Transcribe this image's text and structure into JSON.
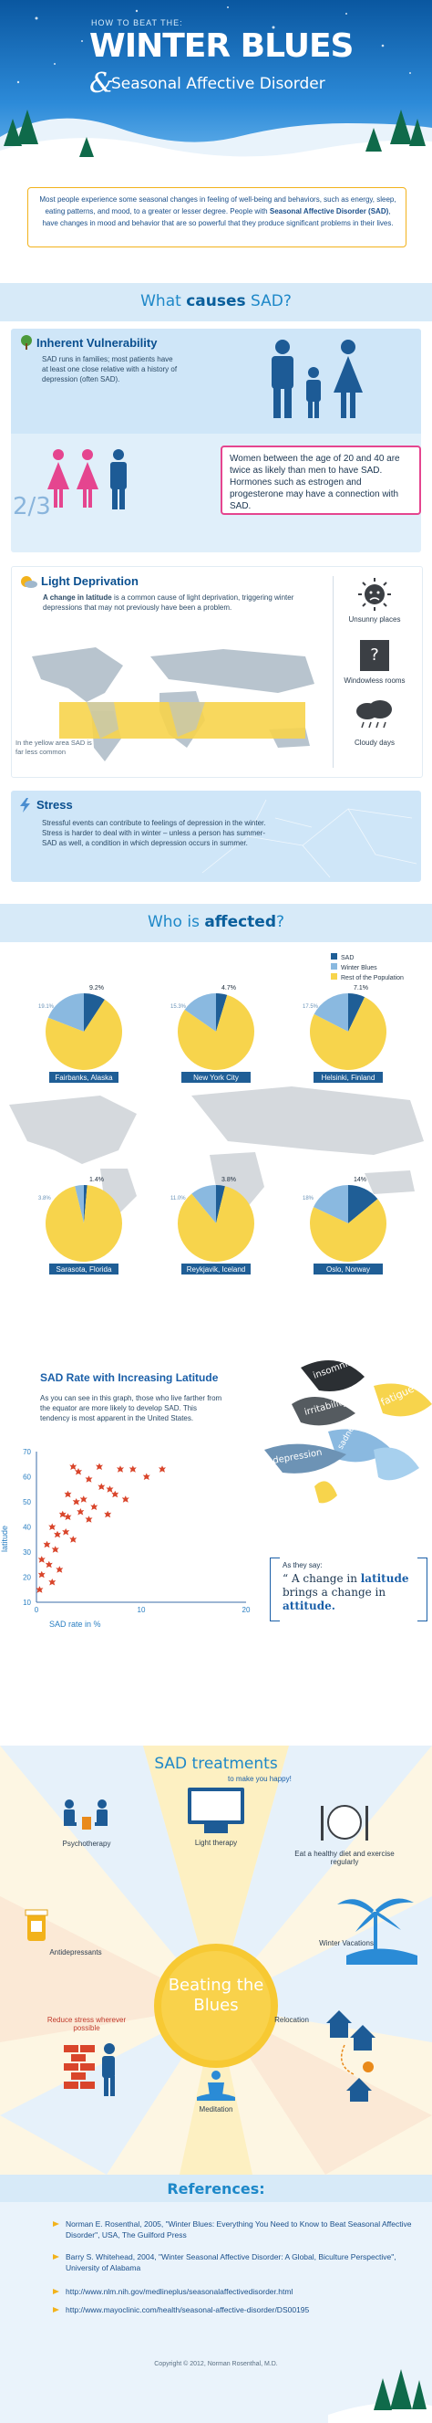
{
  "header": {
    "pretitle": "HOW TO BEAT THE:",
    "title": "WINTER BLUES",
    "subtitle": "Seasonal Affective Disorder",
    "amp": "&"
  },
  "intro": {
    "text1": "Most people experience some seasonal changes in feeling of well-being and behaviors, such as energy, sleep, eating patterns, and mood, to a greater or lesser degree. People with ",
    "bold": "Seasonal Affective Disorder (SAD)",
    "text2": ", have changes in mood and behavior that are so powerful that they produce significant problems in their lives."
  },
  "causes": {
    "title_pre": "What",
    "title_bold": "causes",
    "title_post": "SAD?",
    "inherent": {
      "title": "Inherent Vulnerability",
      "text": "SAD runs in families; most patients have at least one close relative with a history of depression (often SAD).",
      "fraction": "2/3",
      "women_text": "Women between the age of 20 and 40 are twice as likely than men to have SAD. Hormones such as estrogen and progesterone may have a connection with SAD."
    },
    "light": {
      "title": "Light Deprivation",
      "text_bold": "A change in latitude",
      "text": " is a common cause of light deprivation, triggering winter depressions that may not previously have been a problem.",
      "map_caption": "In the yellow area SAD is far less common",
      "icon_labels": [
        "Unsunny places",
        "Windowless rooms",
        "Cloudy days"
      ]
    },
    "stress": {
      "title": "Stress",
      "text": "Stressful events can contribute to feelings of depression in the winter. Stress is harder to deal with in winter – unless a person has summer-SAD as well, a condition in which depression occurs in summer."
    }
  },
  "affected": {
    "title_pre": "Who is",
    "title_bold": "affected",
    "title_post": "?",
    "legend": [
      "SAD",
      "Winter Blues",
      "Rest of the Population"
    ],
    "colors": {
      "sad": "#1f5e96",
      "blues": "#8ab9e0",
      "rest": "#f7d44c"
    },
    "cities": [
      {
        "name": "Fairbanks, Alaska",
        "sad": 9.2,
        "blues": 19.1,
        "sad_label": "9.2%",
        "blues_label": "19.1%"
      },
      {
        "name": "New York City",
        "sad": 4.7,
        "blues": 15.3,
        "sad_label": "4.7%",
        "blues_label": "15.3%"
      },
      {
        "name": "Helsinki, Finland",
        "sad": 7.1,
        "blues": 17.5,
        "sad_label": "7.1%",
        "blues_label": "17.5%"
      },
      {
        "name": "Sarasota, Florida",
        "sad": 1.4,
        "blues": 3.8,
        "sad_label": "1.4%",
        "blues_label": "3.8%"
      },
      {
        "name": "Reykjavik, Iceland",
        "sad": 3.8,
        "blues": 11.0,
        "sad_label": "3.8%",
        "blues_label": "11.0%"
      },
      {
        "name": "Oslo, Norway",
        "sad": 14,
        "blues": 18,
        "sad_label": "14%",
        "blues_label": "18%"
      }
    ]
  },
  "latitude": {
    "title": "SAD Rate with Increasing Latitude",
    "text": "As you can see in this graph, those who live farther from the equator are more likely to develop SAD. This tendency is most apparent in the United States.",
    "quote_intro": "As they say:",
    "quote_pre": "A change in ",
    "quote_latitude": "latitude",
    "quote_mid": " brings a change in ",
    "quote_attitude": "attitude.",
    "words": [
      "insomnia",
      "irritability",
      "sadness",
      "fatigue",
      "depression"
    ]
  },
  "chart_data": {
    "type": "scatter",
    "title": "",
    "xlabel": "SAD rate in %",
    "ylabel": "latitude",
    "xlim": [
      0,
      20
    ],
    "ylim": [
      10,
      70
    ],
    "xticks": [
      0,
      10,
      20
    ],
    "yticks": [
      10,
      20,
      30,
      40,
      50,
      60,
      70
    ],
    "x": [
      3.5,
      4,
      5,
      6,
      6.2,
      7,
      8,
      9.2,
      10.5,
      12,
      3,
      3.8,
      4.5,
      5.5,
      7.5,
      8.5,
      2.5,
      3,
      4.2,
      5,
      6.8,
      1.5,
      2,
      2.8,
      3.5,
      1,
      1.8,
      0.5,
      1.2,
      0.5,
      0.3,
      2.2,
      1.5
    ],
    "y": [
      64,
      62,
      59,
      64,
      56,
      55,
      63,
      63,
      60,
      63,
      53,
      50,
      51,
      48,
      53,
      51,
      45,
      44,
      46,
      43,
      45,
      40,
      37,
      38,
      35,
      33,
      31,
      27,
      25,
      21,
      15,
      23,
      18
    ],
    "color": "#d9452b"
  },
  "treatments": {
    "title": "SAD treatments",
    "subtitle": "to make you happy!",
    "center": "Beating the Blues",
    "items": [
      "Psychotherapy",
      "Light therapy",
      "Eat a healthy diet and exercise regularly",
      "Antidepressants",
      "Winter Vacations",
      "Reduce stress wherever possible",
      "Meditation",
      "Relocation"
    ]
  },
  "references": {
    "title": "References:",
    "items": [
      "Norman E. Rosenthal, 2005, \"Winter Blues: Everything You Need to Know to Beat Seasonal Affective Disorder\", USA, The Guilford Press",
      "Barry S. Whitehead, 2004, \"Winter Seasonal Affective Disorder: A Global, Biculture Perspective\", University of Alabama",
      "http://www.nlm.nih.gov/medlineplus/seasonalaffectivedisorder.html",
      "http://www.mayoclinic.com/health/seasonal-affective-disorder/DS00195"
    ],
    "copyright": "Copyright © 2012, Norman Rosenthal, M.D."
  }
}
